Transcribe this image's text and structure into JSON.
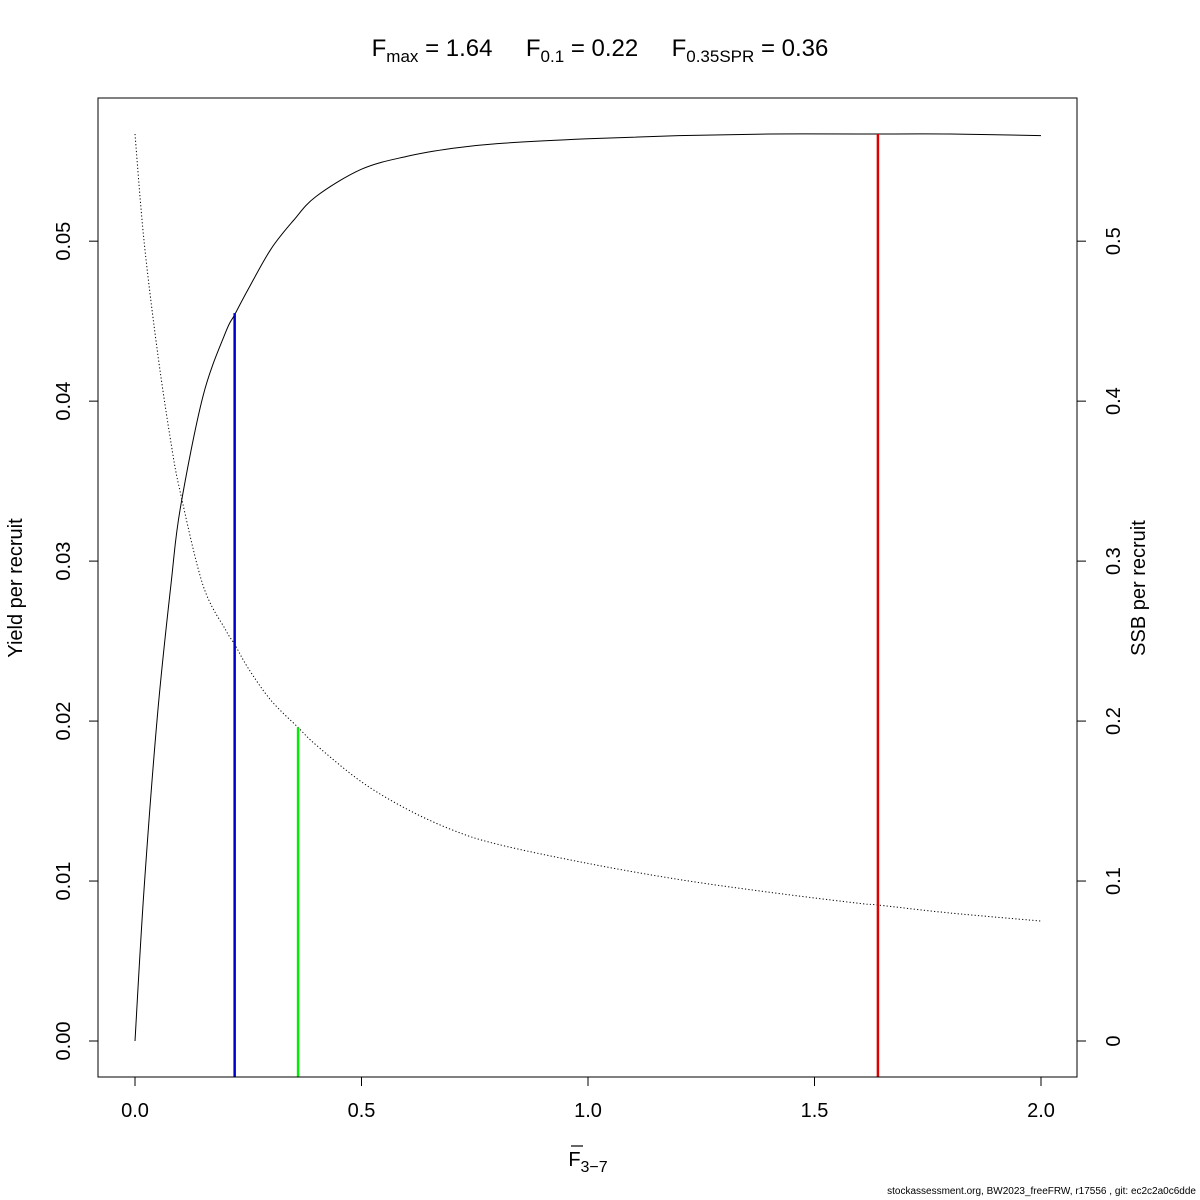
{
  "chart_data": {
    "type": "line",
    "title_parts": {
      "fmax": {
        "main": "F",
        "sub": "max",
        "value": "1.64"
      },
      "f01": {
        "main": "F",
        "sub": "0.1",
        "value": "0.22"
      },
      "fspr": {
        "main": "F",
        "sub": "0.35SPR",
        "value": "0.36"
      }
    },
    "xlabel": {
      "main": "F",
      "sub": "3−7"
    },
    "ylabel": "Yield per recruit",
    "y2label": "SSB per recruit",
    "xlim": [
      0,
      2
    ],
    "ylim": [
      0,
      0.0567
    ],
    "y2lim": [
      0,
      0.567
    ],
    "x_ticks": [
      0.0,
      0.5,
      1.0,
      1.5,
      2.0
    ],
    "x_tick_labels": [
      "0.0",
      "0.5",
      "1.0",
      "1.5",
      "2.0"
    ],
    "y_ticks": [
      0.0,
      0.01,
      0.02,
      0.03,
      0.04,
      0.05
    ],
    "y_tick_labels": [
      "0.00",
      "0.01",
      "0.02",
      "0.03",
      "0.04",
      "0.05"
    ],
    "y2_ticks": [
      0,
      0.1,
      0.2,
      0.3,
      0.4,
      0.5
    ],
    "y2_tick_labels": [
      "0",
      "0.1",
      "0.2",
      "0.3",
      "0.4",
      "0.5"
    ],
    "grid": false,
    "series": [
      {
        "axis": "left",
        "line_style": "solid",
        "x": [
          0,
          0.02,
          0.05,
          0.08,
          0.1,
          0.15,
          0.2,
          0.22,
          0.25,
          0.3,
          0.35,
          0.4,
          0.5,
          0.6,
          0.7,
          0.8,
          1.0,
          1.2,
          1.4,
          1.6,
          1.64,
          1.8,
          2.0
        ],
        "y": [
          0,
          0.0095,
          0.0205,
          0.0287,
          0.0333,
          0.0403,
          0.0443,
          0.0454,
          0.047,
          0.0495,
          0.0513,
          0.0528,
          0.0545,
          0.0553,
          0.0558,
          0.0561,
          0.0564,
          0.0566,
          0.0567,
          0.0567,
          0.0567,
          0.0567,
          0.0566
        ]
      },
      {
        "axis": "right",
        "line_style": "dotted",
        "x": [
          0,
          0.02,
          0.05,
          0.08,
          0.1,
          0.15,
          0.2,
          0.22,
          0.25,
          0.3,
          0.36,
          0.4,
          0.5,
          0.6,
          0.7,
          0.8,
          1.0,
          1.2,
          1.4,
          1.6,
          1.64,
          1.8,
          2.0
        ],
        "y": [
          0.567,
          0.5,
          0.43,
          0.373,
          0.343,
          0.285,
          0.257,
          0.248,
          0.233,
          0.213,
          0.196,
          0.185,
          0.162,
          0.145,
          0.132,
          0.123,
          0.111,
          0.101,
          0.093,
          0.086,
          0.085,
          0.08,
          0.075
        ]
      }
    ],
    "reference_lines": [
      {
        "x": 0.22,
        "top_y": 0.0455,
        "axis": "left",
        "color": "#0000cc"
      },
      {
        "x": 0.36,
        "top_y": 0.196,
        "axis": "right",
        "color": "#00ee00"
      },
      {
        "x": 1.64,
        "top_y": 0.0567,
        "axis": "left",
        "color": "#dd0000"
      }
    ]
  },
  "footer": "stockassessment.org, BW2023_freeFRW, r17556 , git: ec2c2a0c6dde"
}
